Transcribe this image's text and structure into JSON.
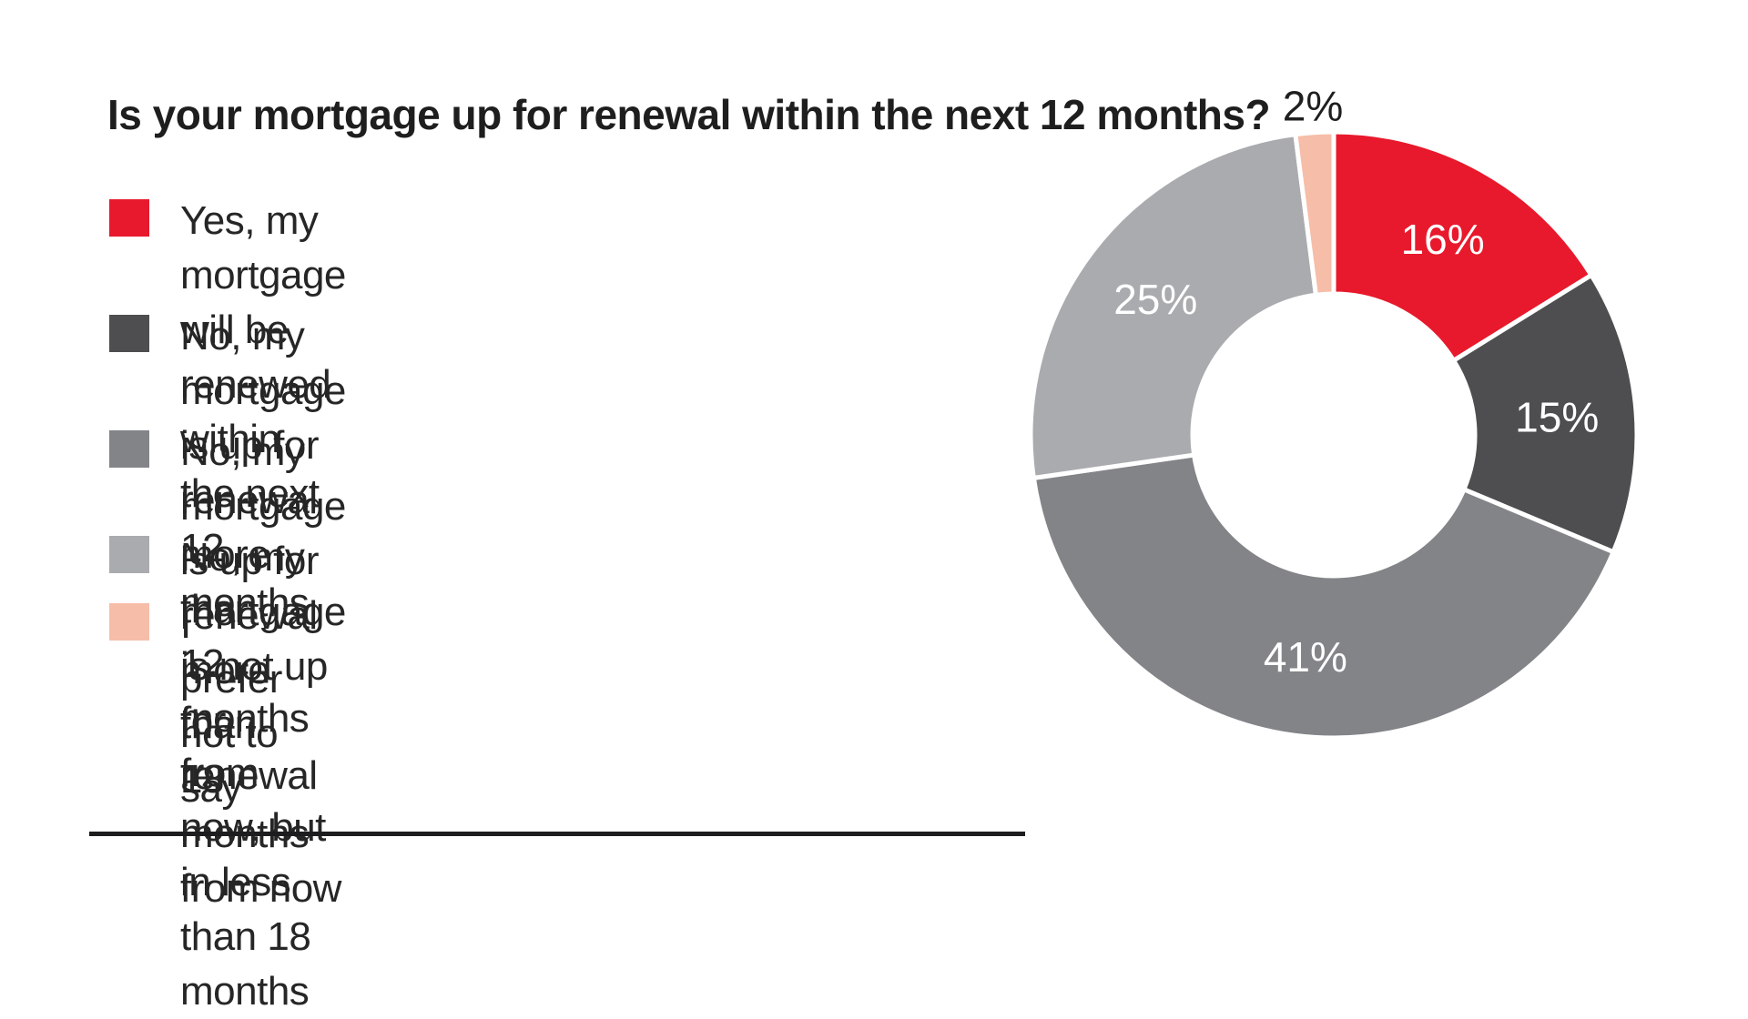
{
  "page": {
    "background_color": "#FFFFFF"
  },
  "chart_data": {
    "type": "pie",
    "subtype": "donut",
    "title": "Is your mortgage up for renewal within the next 12 months?",
    "start_angle_deg": 0,
    "direction": "clockwise",
    "legend_position": "left",
    "inside_label_color": "#FFFFFF",
    "outside_label_color": "#1F1F1F",
    "separator_color": "#FFFFFF",
    "slices": [
      {
        "label": "Yes, my mortgage will be renewed within the next 12 months",
        "legend_lines": "Yes, my mortgage will be renewed within\nthe next 12 months",
        "value": 16,
        "display": "16%",
        "color": "#E8192C"
      },
      {
        "label": "No, my mortgage is up for renewal more than 12 months from now, but in less than 18 months",
        "legend_lines": "No, my mortgage is up for renewal more than\n12 months from now, but in less than 18 months",
        "value": 15,
        "display": "15%",
        "color": "#4E4E50"
      },
      {
        "label": "No, my mortgage is up for renewal more than 18 months from now",
        "legend_lines": "No, my mortgage is up for renewal more than\n18 months from now",
        "value": 41,
        "display": "41%",
        "color": "#828488"
      },
      {
        "label": "No, my mortgage is not up for renewal",
        "legend_lines": "No, my mortgage is not up for renewal",
        "value": 25,
        "display": "25%",
        "color": "#A9ABAE"
      },
      {
        "label": "I prefer not to say",
        "legend_lines": "I prefer not to say",
        "value": 2,
        "display": "2%",
        "color": "#F6BDA9"
      }
    ]
  }
}
